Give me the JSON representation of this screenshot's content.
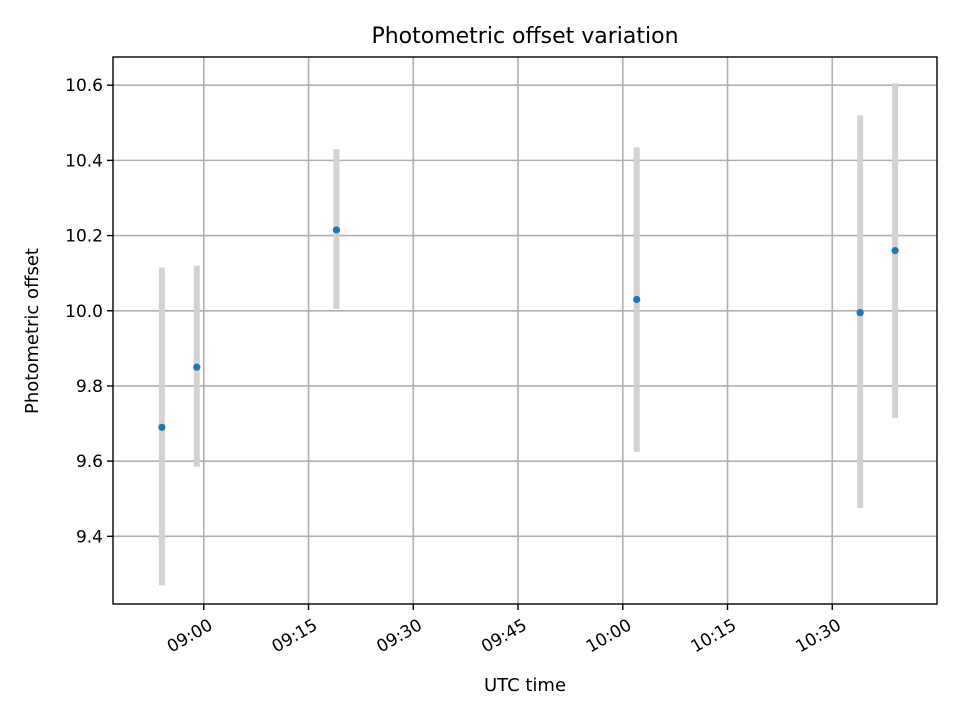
{
  "chart_data": {
    "type": "scatter",
    "title": "Photometric offset variation",
    "xlabel": "UTC time",
    "ylabel": "Photometric offset",
    "x_type": "time",
    "xlim": [
      "08:47",
      "10:45"
    ],
    "ylim": [
      9.22,
      10.675
    ],
    "x_ticks": [
      "09:00",
      "09:15",
      "09:30",
      "09:45",
      "10:00",
      "10:15",
      "10:30"
    ],
    "y_ticks": [
      9.4,
      9.6,
      9.8,
      10.0,
      10.2,
      10.4,
      10.6
    ],
    "y_tick_labels": [
      "9.4",
      "9.6",
      "9.8",
      "10.0",
      "10.2",
      "10.4",
      "10.6"
    ],
    "grid": true,
    "marker_color": "#1f77b4",
    "errorbar_color": "#d3d3d3",
    "series": [
      {
        "points": [
          {
            "x": "08:54",
            "y": 9.69,
            "y_low": 9.27,
            "y_high": 10.115
          },
          {
            "x": "08:59",
            "y": 9.85,
            "y_low": 9.585,
            "y_high": 10.12
          },
          {
            "x": "09:19",
            "y": 10.215,
            "y_low": 10.005,
            "y_high": 10.43
          },
          {
            "x": "10:02",
            "y": 10.03,
            "y_low": 9.625,
            "y_high": 10.435
          },
          {
            "x": "10:34",
            "y": 9.995,
            "y_low": 9.475,
            "y_high": 10.52
          },
          {
            "x": "10:39",
            "y": 10.16,
            "y_low": 9.715,
            "y_high": 10.605
          }
        ]
      }
    ]
  }
}
